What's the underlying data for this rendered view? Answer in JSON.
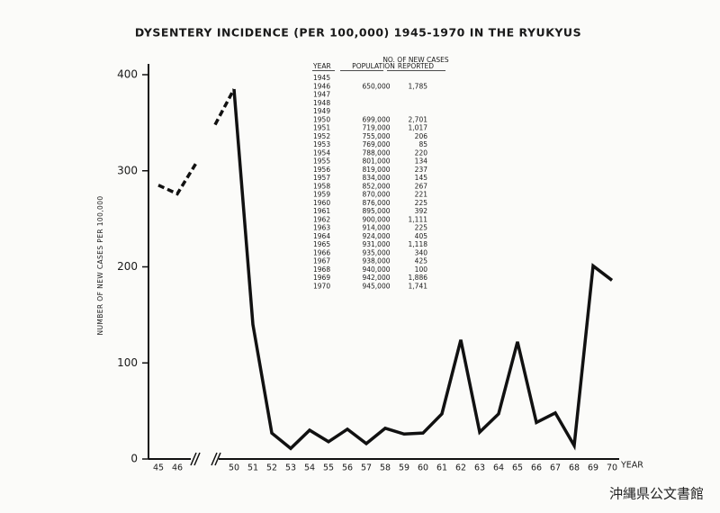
{
  "chart_data": {
    "type": "line",
    "title": "DYSENTERY INCIDENCE (PER 100,000) 1945-1970 IN THE RYUKYUS",
    "y_label": "NUMBER OF NEW CASES PER 100,000",
    "x_label": "YEAR",
    "categories": [
      "45",
      "46",
      null,
      null,
      "50",
      "51",
      "52",
      "53",
      "54",
      "55",
      "56",
      "57",
      "58",
      "59",
      "60",
      "61",
      "62",
      "63",
      "64",
      "65",
      "66",
      "67",
      "68",
      "69",
      "70"
    ],
    "axis_breaks": [
      2,
      3
    ],
    "series": [
      {
        "style": "dashed",
        "color": "#111111",
        "values": [
          285,
          276,
          308,
          null,
          null,
          null,
          null,
          null,
          null,
          null,
          null,
          null,
          null,
          null,
          null,
          null,
          null,
          null,
          null,
          null,
          null,
          null,
          null,
          null,
          null
        ]
      },
      {
        "style": "dashed",
        "color": "#111111",
        "values": [
          null,
          null,
          null,
          348,
          385,
          null,
          null,
          null,
          null,
          null,
          null,
          null,
          null,
          null,
          null,
          null,
          null,
          null,
          null,
          null,
          null,
          null,
          null,
          null,
          null
        ]
      },
      {
        "style": "solid",
        "color": "#111111",
        "values": [
          null,
          null,
          null,
          null,
          385,
          140,
          27,
          11,
          30,
          18,
          31,
          16,
          32,
          26,
          27,
          47,
          124,
          28,
          47,
          122,
          38,
          48,
          14,
          201,
          186
        ]
      }
    ],
    "ylim": [
      0,
      400
    ],
    "yticks": [
      0,
      100,
      200,
      300,
      400
    ],
    "grid": false,
    "table": {
      "columns": [
        [
          "YEAR"
        ],
        [
          "POPULATION"
        ],
        [
          "NO. OF NEW CASES",
          "REPORTED"
        ]
      ],
      "rows": [
        [
          "1945"
        ],
        [
          "1946",
          "650,000",
          "1,785"
        ],
        [
          "1947"
        ],
        [
          "1948"
        ],
        [
          "1949"
        ],
        [
          "1950",
          "699,000",
          "2,701"
        ],
        [
          "1951",
          "719,000",
          "1,017"
        ],
        [
          "1952",
          "755,000",
          "206"
        ],
        [
          "1953",
          "769,000",
          "85"
        ],
        [
          "1954",
          "788,000",
          "220"
        ],
        [
          "1955",
          "801,000",
          "134"
        ],
        [
          "1956",
          "819,000",
          "237"
        ],
        [
          "1957",
          "834,000",
          "145"
        ],
        [
          "1958",
          "852,000",
          "267"
        ],
        [
          "1959",
          "870,000",
          "221"
        ],
        [
          "1960",
          "876,000",
          "225"
        ],
        [
          "1961",
          "895,000",
          "392"
        ],
        [
          "1962",
          "900,000",
          "1,111"
        ],
        [
          "1963",
          "914,000",
          "225"
        ],
        [
          "1964",
          "924,000",
          "405"
        ],
        [
          "1965",
          "931,000",
          "1,118"
        ],
        [
          "1966",
          "935,000",
          "340"
        ],
        [
          "1967",
          "938,000",
          "425"
        ],
        [
          "1968",
          "940,000",
          "100"
        ],
        [
          "1969",
          "942,000",
          "1,886"
        ],
        [
          "1970",
          "945,000",
          "1,741"
        ]
      ]
    },
    "watermark": "沖縄県公文書館"
  }
}
